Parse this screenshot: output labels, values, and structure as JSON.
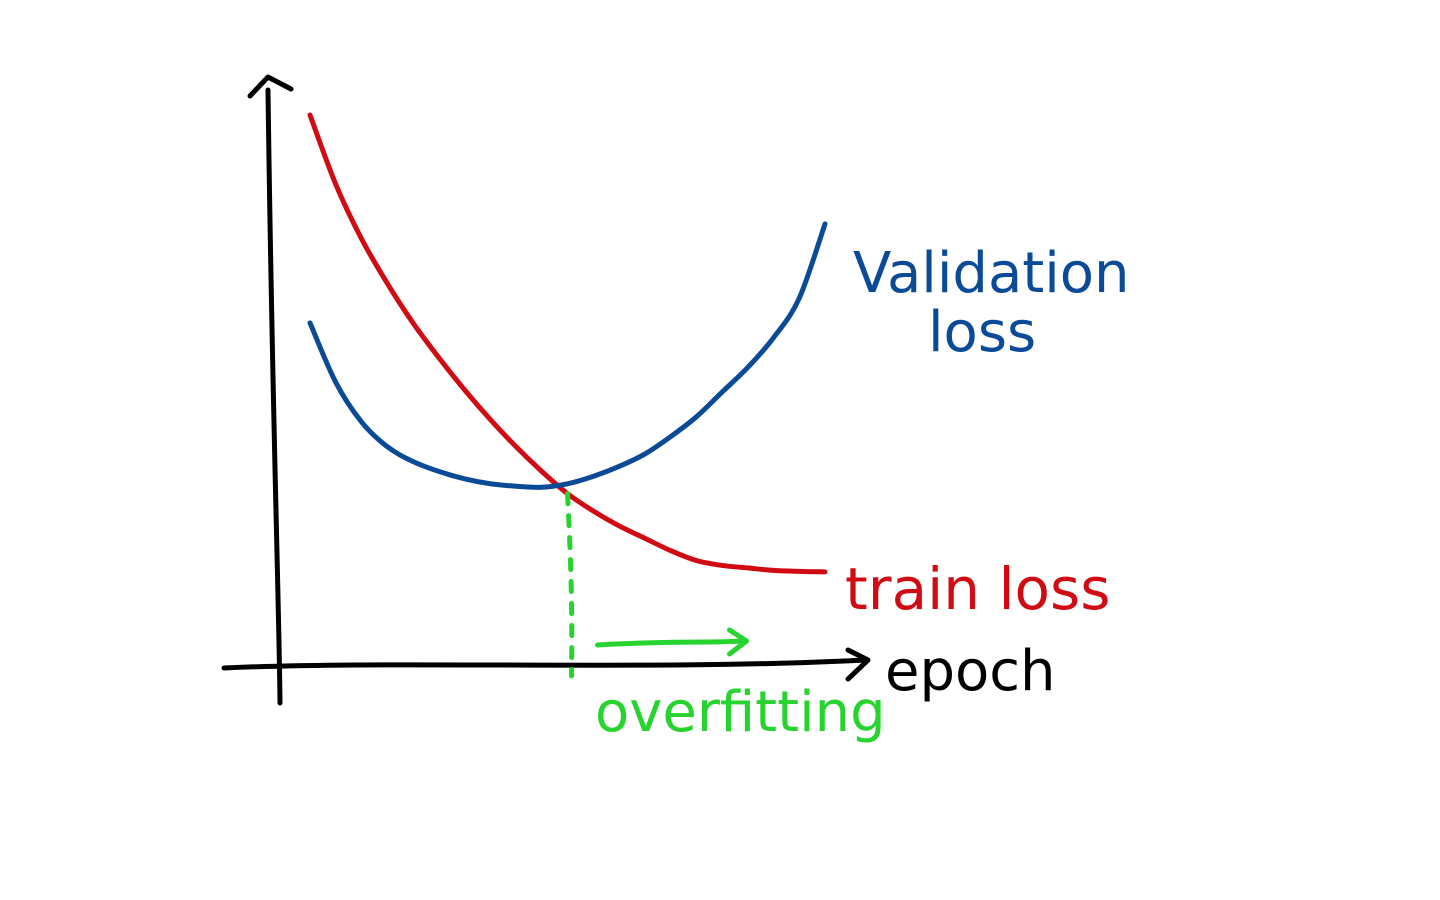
{
  "chart_data": {
    "type": "line",
    "title": "",
    "xlabel": "epoch",
    "ylabel": "",
    "grid": false,
    "series": [
      {
        "name": "train loss",
        "color": "#d10b13",
        "x": [
          0,
          0.05,
          0.1,
          0.15,
          0.2,
          0.25,
          0.3,
          0.35,
          0.4,
          0.45,
          0.5,
          0.55,
          0.6,
          0.65,
          0.7,
          0.75,
          0.8,
          0.85,
          0.9,
          0.95,
          1.0
        ],
        "y": [
          1.0,
          0.86,
          0.75,
          0.66,
          0.58,
          0.51,
          0.445,
          0.385,
          0.33,
          0.28,
          0.235,
          0.2,
          0.17,
          0.145,
          0.12,
          0.1,
          0.09,
          0.085,
          0.08,
          0.078,
          0.077
        ]
      },
      {
        "name": "Validation loss",
        "color": "#0b4a97",
        "x": [
          0,
          0.05,
          0.1,
          0.15,
          0.2,
          0.25,
          0.3,
          0.35,
          0.4,
          0.45,
          0.5,
          0.55,
          0.6,
          0.65,
          0.7,
          0.75,
          0.8,
          0.85,
          0.9,
          0.95,
          1.0
        ],
        "y": [
          0.58,
          0.46,
          0.38,
          0.33,
          0.3,
          0.28,
          0.265,
          0.255,
          0.25,
          0.248,
          0.255,
          0.27,
          0.29,
          0.315,
          0.35,
          0.39,
          0.44,
          0.49,
          0.55,
          0.63,
          0.78
        ]
      }
    ],
    "annotations": {
      "crossover_x": 0.5,
      "overfitting_label": "overfitting",
      "validation_label_line1": "Validation",
      "validation_label_line2": "loss",
      "train_label": "train loss"
    },
    "axes_color": "#000000",
    "annotation_color": "#27d42f"
  }
}
